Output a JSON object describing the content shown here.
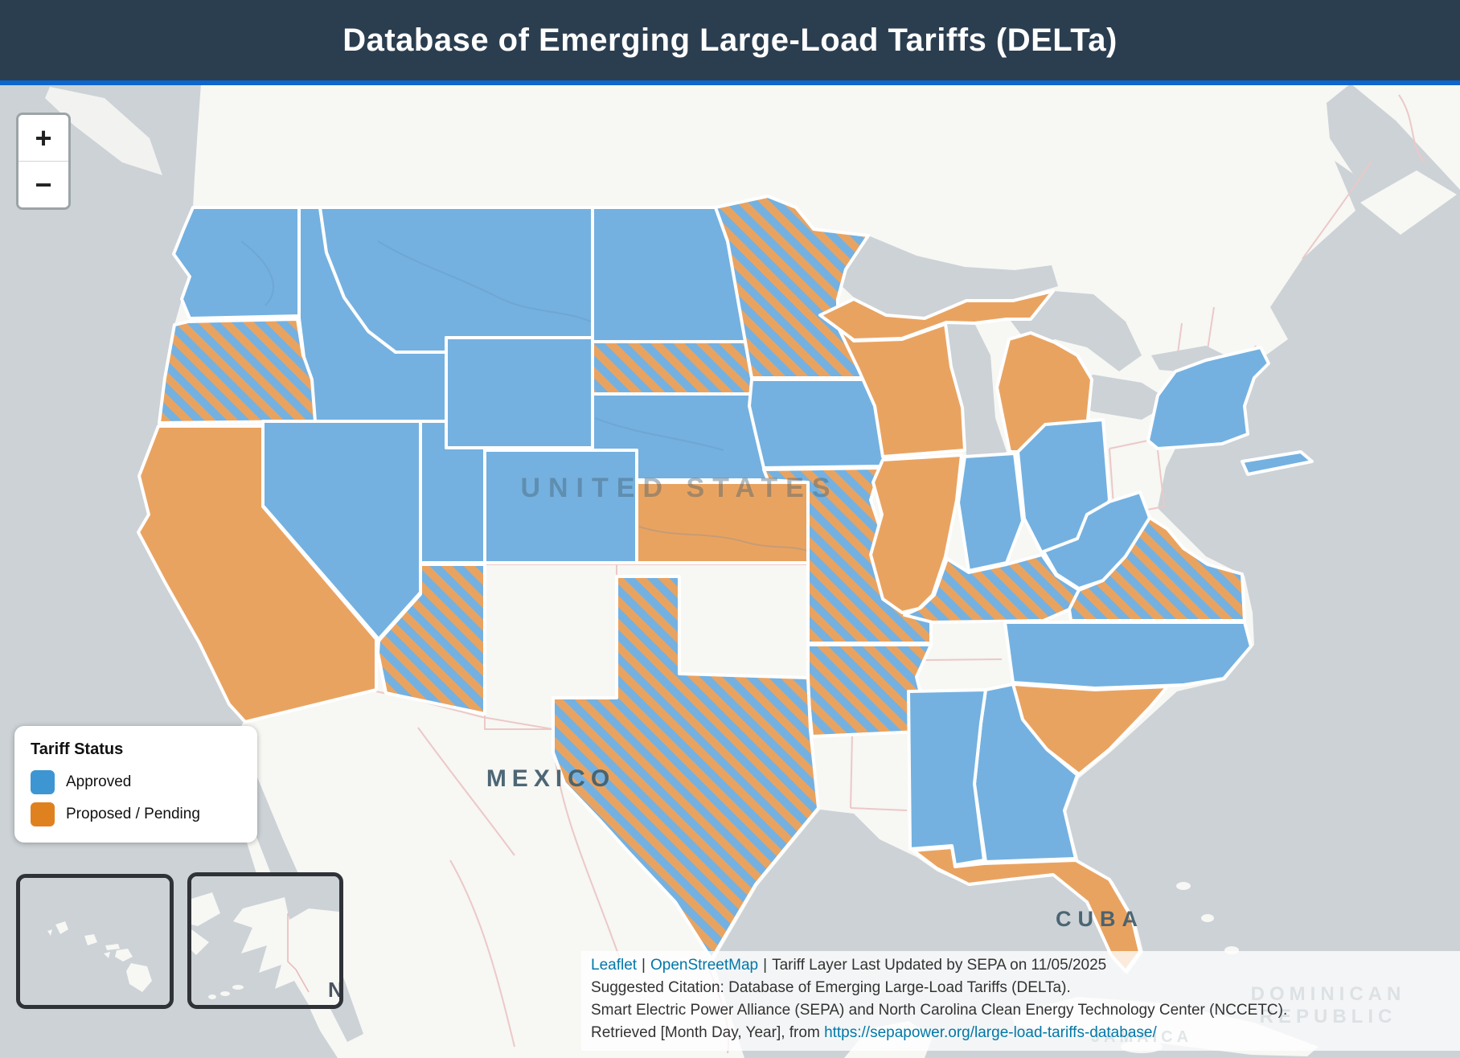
{
  "header": {
    "title": "Database of Emerging Large-Load Tariffs (DELTa)"
  },
  "map": {
    "zoom_in_label": "+",
    "zoom_out_label": "−",
    "labels": {
      "united_states": "UNITED STATES",
      "mexico": "MEXICO",
      "cuba": "CUBA",
      "dominican": "DOMINICAN",
      "republic": "REPUBLIC",
      "jamaica": "JAMAICA",
      "alaska_n": "N"
    },
    "colors": {
      "header_bg": "#2B3E50",
      "accent_line": "#0D65CE",
      "water": "#CCD2D6",
      "land": "#F7F7F4",
      "approved_fill": "#74B1E0",
      "proposed_fill": "#E9A361",
      "state_border": "#FFFFFF"
    }
  },
  "legend": {
    "title": "Tariff Status",
    "items": [
      {
        "label": "Approved",
        "color": "#3D96D2",
        "status": "approved"
      },
      {
        "label": "Proposed / Pending",
        "color": "#E0811F",
        "status": "proposed"
      }
    ]
  },
  "tariff_status": {
    "approved": [
      "WA",
      "MT",
      "ID",
      "WY",
      "NV",
      "UT",
      "CO",
      "ND",
      "NE",
      "IA",
      "IN",
      "OH",
      "WV",
      "NY",
      "NC",
      "GA",
      "AL"
    ],
    "proposed": [
      "CA",
      "KS",
      "WI",
      "MI",
      "IL",
      "SC",
      "FL"
    ],
    "proposed_and_approved": [
      "OR",
      "AZ",
      "SD",
      "MN",
      "MO",
      "AR",
      "TX",
      "KY",
      "VA"
    ]
  },
  "attribution": {
    "leaflet_link": "Leaflet",
    "separator": "|",
    "osm_link": "OpenStreetMap",
    "updated_text": "Tariff Layer Last Updated by SEPA on 11/05/2025",
    "citation_line1": "Suggested Citation: Database of Emerging Large-Load Tariffs (DELTa).",
    "citation_line2": "Smart Electric Power Alliance (SEPA) and North Carolina Clean Energy Technology Center (NCCETC).",
    "retrieved_prefix": "Retrieved [Month Day, Year], from ",
    "retrieved_url": "https://sepapower.org/large-load-tariffs-database/"
  }
}
